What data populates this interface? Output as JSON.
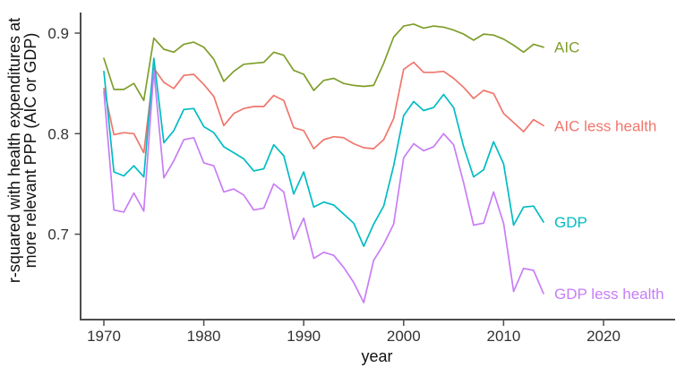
{
  "chart_data": {
    "type": "line",
    "title": "",
    "xlabel": "year",
    "ylabel_lines": [
      "r-squared with health expenditures at",
      "more relevant PPP (AIC or GDP)"
    ],
    "x_ticks": [
      1970,
      1980,
      1990,
      2000,
      2010,
      2020
    ],
    "x_tick_labels": [
      "1970",
      "1980",
      "1990",
      "2000",
      "2010",
      "2020"
    ],
    "y_ticks": [
      0.9,
      0.8,
      0.7
    ],
    "y_tick_labels": [
      "0.9",
      "0.8",
      "0.7"
    ],
    "xlim": [
      1968,
      2027
    ],
    "ylim": [
      0.615,
      0.92
    ],
    "grid": "off",
    "legend_position": "labels-at-line-ends",
    "x": [
      1970,
      1971,
      1972,
      1973,
      1974,
      1975,
      1976,
      1977,
      1978,
      1979,
      1980,
      1981,
      1982,
      1983,
      1984,
      1985,
      1986,
      1987,
      1988,
      1989,
      1990,
      1991,
      1992,
      1993,
      1994,
      1995,
      1996,
      1997,
      1998,
      1999,
      2000,
      2001,
      2002,
      2003,
      2004,
      2005,
      2006,
      2007,
      2008,
      2009,
      2010,
      2011,
      2012,
      2013,
      2014
    ],
    "series": [
      {
        "name": "AIC",
        "label": "AIC",
        "color": "#7f9e2c",
        "values": [
          0.875,
          0.844,
          0.844,
          0.85,
          0.833,
          0.895,
          0.884,
          0.881,
          0.889,
          0.891,
          0.886,
          0.874,
          0.852,
          0.862,
          0.869,
          0.87,
          0.871,
          0.881,
          0.878,
          0.863,
          0.859,
          0.843,
          0.853,
          0.855,
          0.85,
          0.848,
          0.847,
          0.848,
          0.87,
          0.896,
          0.907,
          0.909,
          0.905,
          0.907,
          0.906,
          0.903,
          0.899,
          0.893,
          0.899,
          0.898,
          0.894,
          0.888,
          0.881,
          0.889,
          0.886
        ]
      },
      {
        "name": "AIC less health",
        "label": "AIC less health",
        "color": "#f0766c",
        "values": [
          0.845,
          0.799,
          0.801,
          0.8,
          0.781,
          0.865,
          0.851,
          0.845,
          0.858,
          0.859,
          0.849,
          0.837,
          0.808,
          0.82,
          0.825,
          0.827,
          0.827,
          0.838,
          0.833,
          0.806,
          0.803,
          0.785,
          0.794,
          0.797,
          0.796,
          0.79,
          0.786,
          0.785,
          0.794,
          0.815,
          0.864,
          0.871,
          0.861,
          0.861,
          0.862,
          0.855,
          0.846,
          0.835,
          0.843,
          0.84,
          0.82,
          0.811,
          0.802,
          0.814,
          0.808
        ]
      },
      {
        "name": "GDP",
        "label": "GDP",
        "color": "#00bcc3",
        "values": [
          0.862,
          0.762,
          0.758,
          0.768,
          0.757,
          0.875,
          0.791,
          0.803,
          0.824,
          0.825,
          0.807,
          0.801,
          0.787,
          0.781,
          0.775,
          0.763,
          0.765,
          0.789,
          0.778,
          0.74,
          0.762,
          0.727,
          0.732,
          0.729,
          0.72,
          0.711,
          0.688,
          0.71,
          0.728,
          0.768,
          0.818,
          0.832,
          0.823,
          0.826,
          0.839,
          0.826,
          0.787,
          0.757,
          0.764,
          0.792,
          0.77,
          0.709,
          0.727,
          0.728,
          0.712
        ]
      },
      {
        "name": "GDP less health",
        "label": "GDP less health",
        "color": "#c87df5",
        "values": [
          0.842,
          0.724,
          0.722,
          0.741,
          0.723,
          0.863,
          0.756,
          0.773,
          0.794,
          0.796,
          0.771,
          0.768,
          0.742,
          0.745,
          0.739,
          0.724,
          0.726,
          0.75,
          0.742,
          0.695,
          0.716,
          0.676,
          0.682,
          0.679,
          0.667,
          0.652,
          0.632,
          0.674,
          0.69,
          0.71,
          0.776,
          0.79,
          0.783,
          0.787,
          0.8,
          0.789,
          0.751,
          0.709,
          0.711,
          0.742,
          0.711,
          0.643,
          0.666,
          0.664,
          0.641
        ]
      }
    ]
  }
}
